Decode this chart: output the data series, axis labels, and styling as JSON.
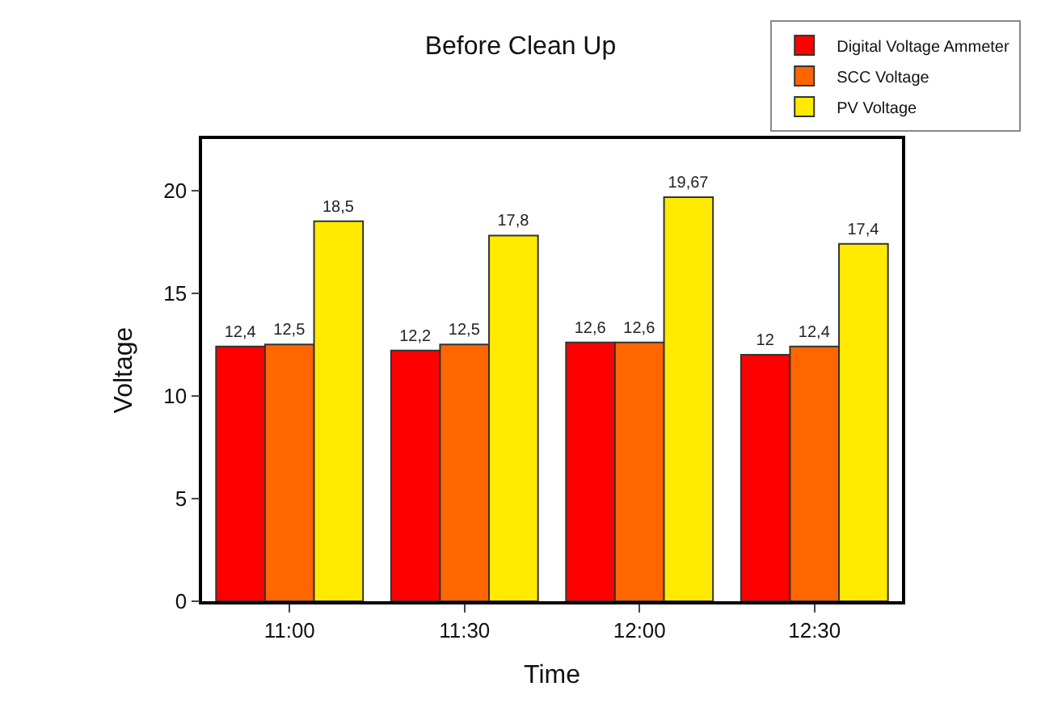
{
  "chart_data": {
    "type": "bar",
    "title": "Before Clean Up",
    "xlabel": "Time",
    "ylabel": "Voltage",
    "categories": [
      "11:00",
      "11:30",
      "12:00",
      "12:30"
    ],
    "series": [
      {
        "name": "Digital Voltage Ammeter",
        "color": "#ff0000",
        "values": [
          12.4,
          12.2,
          12.6,
          12
        ],
        "value_labels": [
          "12,4",
          "12,2",
          "12,6",
          "12"
        ]
      },
      {
        "name": "SCC Voltage",
        "color": "#ff6600",
        "values": [
          12.5,
          12.5,
          12.6,
          12.4
        ],
        "value_labels": [
          "12,5",
          "12,5",
          "12,6",
          "12,4"
        ]
      },
      {
        "name": "PV Voltage",
        "color": "#ffea00",
        "values": [
          18.5,
          17.8,
          19.67,
          17.4
        ],
        "value_labels": [
          "18,5",
          "17,8",
          "19,67",
          "17,4"
        ]
      }
    ],
    "ylim": [
      0,
      22.5
    ],
    "yticks": [
      0,
      5,
      10,
      15,
      20
    ],
    "legend": "top right"
  }
}
